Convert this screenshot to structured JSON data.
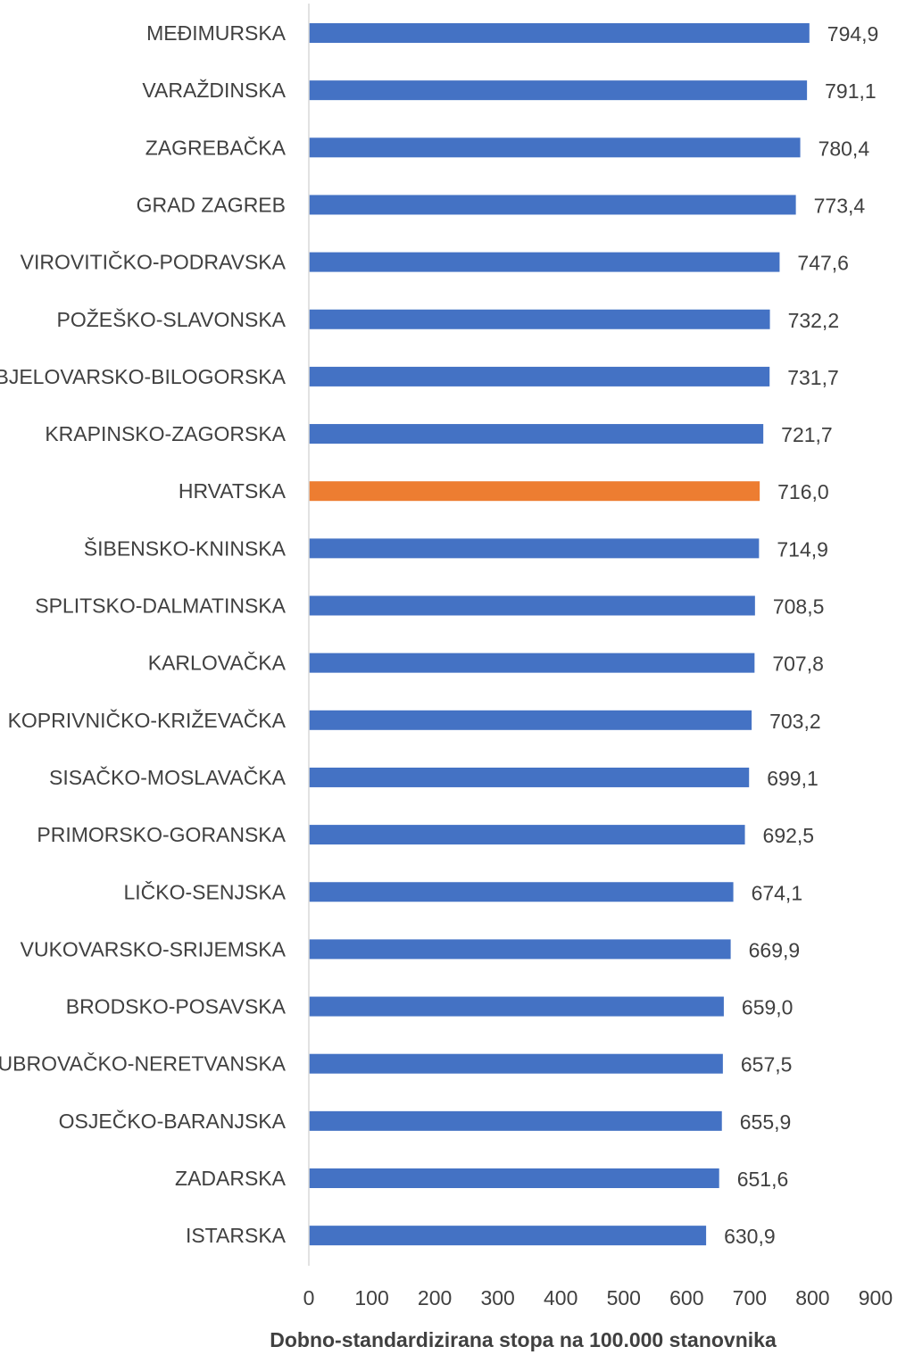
{
  "chart_data": {
    "type": "bar",
    "orientation": "horizontal",
    "categories": [
      "MEĐIMURSKA",
      "VARAŽDINSKA",
      "ZAGREBAČKA",
      "GRAD ZAGREB",
      "VIROVITIČKO-PODRAVSKA",
      "POŽEŠKO-SLAVONSKA",
      "BJELOVARSKO-BILOGORSKA",
      "KRAPINSKO-ZAGORSKA",
      "HRVATSKA",
      "ŠIBENSKO-KNINSKA",
      "SPLITSKO-DALMATINSKA",
      "KARLOVAČKA",
      "KOPRIVNIČKO-KRIŽEVAČKA",
      "SISAČKO-MOSLAVAČKA",
      "PRIMORSKO-GORANSKA",
      "LIČKO-SENJSKA",
      "VUKOVARSKO-SRIJEMSKA",
      "BRODSKO-POSAVSKA",
      "UBROVAČKO-NERETVANSKA",
      "OSJEČKO-BARANJSKA",
      "ZADARSKA",
      "ISTARSKA"
    ],
    "values": [
      794.9,
      791.1,
      780.4,
      773.4,
      747.6,
      732.2,
      731.7,
      721.7,
      716.0,
      714.9,
      708.5,
      707.8,
      703.2,
      699.1,
      692.5,
      674.1,
      669.9,
      659.0,
      657.5,
      655.9,
      651.6,
      630.9
    ],
    "value_labels": [
      "794,9",
      "791,1",
      "780,4",
      "773,4",
      "747,6",
      "732,2",
      "731,7",
      "721,7",
      "716,0",
      "714,9",
      "708,5",
      "707,8",
      "703,2",
      "699,1",
      "692,5",
      "674,1",
      "669,9",
      "659,0",
      "657,5",
      "655,9",
      "651,6",
      "630,9"
    ],
    "highlight_category": "HRVATSKA",
    "xlabel": "Dobno-standardizirana stopa na 100.000 stanovnika",
    "ylabel": "",
    "xlim": [
      0,
      900
    ],
    "xticks": [
      "0",
      "100",
      "200",
      "300",
      "400",
      "500",
      "600",
      "700",
      "800",
      "900"
    ],
    "grid": false,
    "colors": {
      "bar": "#4472C4",
      "highlight_bar": "#ED7D31",
      "axis": "#D9D9D9",
      "text": "#404040"
    }
  }
}
